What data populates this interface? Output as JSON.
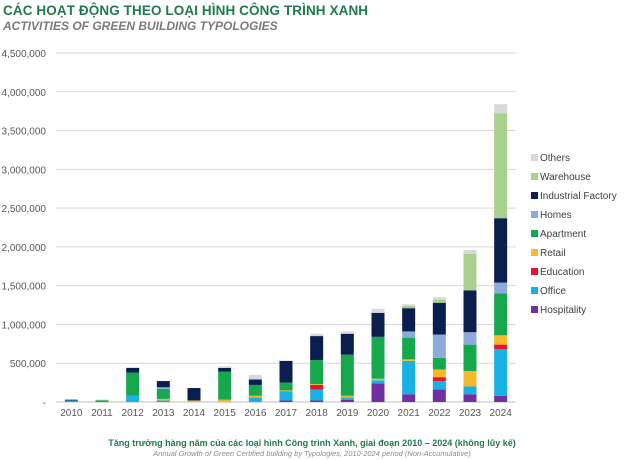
{
  "header": {
    "title": "CÁC HOẠT ĐỘNG THEO LOẠI HÌNH CÔNG TRÌNH XANH",
    "subtitle": "ACTIVITIES OF GREEN BUILDING TYPOLOGIES"
  },
  "footer": {
    "caption": "Tăng trưởng hàng năm của các loại hình Công trình Xanh, giai đoạn 2010 – 2024 (không lũy kế)",
    "caption_en": "Annual Growth of Green Certified building by Typologies, 2010-2024 period (Non-Accumulative)"
  },
  "chart_data": {
    "type": "bar",
    "stacked": true,
    "title": "ACTIVITIES OF GREEN BUILDING TYPOLOGIES",
    "xlabel": "",
    "ylabel": "",
    "ylim": [
      0,
      4500000
    ],
    "yticks": [
      0,
      500000,
      1000000,
      1500000,
      2000000,
      2500000,
      3000000,
      3500000,
      4000000,
      4500000
    ],
    "ytick_labels": [
      "-",
      "500,000",
      "1,000,000",
      "1,500,000",
      "2,000,000",
      "2,500,000",
      "3,000,000",
      "3,500,000",
      "4,000,000",
      "4,500,000"
    ],
    "grid": true,
    "legend_position": "right",
    "categories": [
      "2010",
      "2011",
      "2012",
      "2013",
      "2014",
      "2015",
      "2016",
      "2017",
      "2018",
      "2019",
      "2020",
      "2021",
      "2022",
      "2023",
      "2024"
    ],
    "series": [
      {
        "name": "Hospitality",
        "color": "#7030a0",
        "values": [
          0,
          0,
          0,
          0,
          0,
          0,
          0,
          20000,
          20000,
          30000,
          240000,
          100000,
          160000,
          100000,
          80000
        ]
      },
      {
        "name": "Office",
        "color": "#16b2e6",
        "values": [
          20000,
          0,
          80000,
          20000,
          0,
          0,
          60000,
          120000,
          140000,
          30000,
          40000,
          430000,
          110000,
          100000,
          600000
        ]
      },
      {
        "name": "Education",
        "color": "#e8142c",
        "values": [
          0,
          0,
          0,
          0,
          0,
          0,
          0,
          0,
          60000,
          0,
          0,
          0,
          50000,
          0,
          60000
        ]
      },
      {
        "name": "Retail",
        "color": "#f7b82a",
        "values": [
          0,
          0,
          0,
          20000,
          20000,
          30000,
          20000,
          10000,
          10000,
          20000,
          20000,
          20000,
          100000,
          200000,
          120000
        ]
      },
      {
        "name": "Apartment",
        "color": "#15a84d",
        "values": [
          0,
          20000,
          300000,
          130000,
          0,
          360000,
          140000,
          100000,
          310000,
          530000,
          540000,
          280000,
          150000,
          340000,
          540000
        ]
      },
      {
        "name": "Homes",
        "color": "#8ea9dc",
        "values": [
          0,
          0,
          0,
          20000,
          0,
          0,
          0,
          0,
          0,
          0,
          0,
          80000,
          300000,
          160000,
          140000
        ]
      },
      {
        "name": "Industrial Factory",
        "color": "#0b1f4f",
        "values": [
          10000,
          0,
          60000,
          80000,
          160000,
          50000,
          70000,
          280000,
          310000,
          270000,
          310000,
          300000,
          410000,
          540000,
          830000
        ]
      },
      {
        "name": "Warehouse",
        "color": "#a9d18e",
        "values": [
          0,
          10000,
          0,
          0,
          0,
          0,
          0,
          0,
          0,
          0,
          0,
          30000,
          40000,
          470000,
          1350000
        ]
      },
      {
        "name": "Others",
        "color": "#d9d9d9",
        "values": [
          0,
          0,
          0,
          0,
          0,
          20000,
          60000,
          0,
          30000,
          30000,
          50000,
          20000,
          30000,
          50000,
          120000
        ]
      }
    ]
  }
}
